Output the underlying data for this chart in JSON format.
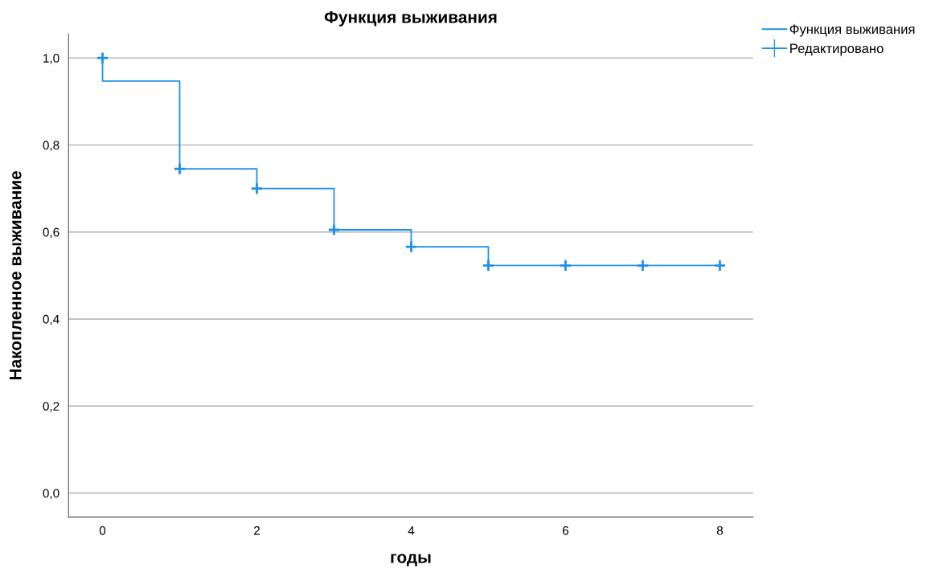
{
  "chart_data": {
    "type": "step",
    "title": "Функция выживания",
    "xlabel": "годы",
    "ylabel": "Накопленное выживание",
    "series": [
      {
        "name": "Функция выживания",
        "color": "#1e90e8",
        "x": [
          0,
          0,
          1,
          2,
          3,
          4,
          5,
          8
        ],
        "values": [
          1.0,
          0.947,
          0.745,
          0.7,
          0.605,
          0.566,
          0.523,
          0.523
        ]
      },
      {
        "name": "Редактировано",
        "type": "scatter",
        "marker": "cross",
        "color": "#1e90e8",
        "x": [
          0,
          1,
          2,
          3,
          4,
          5,
          6,
          7,
          8
        ],
        "values": [
          1.0,
          0.745,
          0.7,
          0.605,
          0.566,
          0.523,
          0.523,
          0.523,
          0.523
        ]
      }
    ],
    "xlim": [
      -0.44,
      8.43
    ],
    "ylim": [
      -0.055,
      1.055
    ],
    "xticks": [
      0,
      2,
      4,
      6,
      8
    ],
    "yticks": [
      {
        "value": 0,
        "label": "0,0"
      },
      {
        "value": 0.2,
        "label": "0,2"
      },
      {
        "value": 0.4,
        "label": "0,4"
      },
      {
        "value": 0.6,
        "label": "0,6"
      },
      {
        "value": 0.8,
        "label": "0,8"
      },
      {
        "value": 1.0,
        "label": "1,0"
      }
    ],
    "grid": "y",
    "legend": "top right"
  }
}
